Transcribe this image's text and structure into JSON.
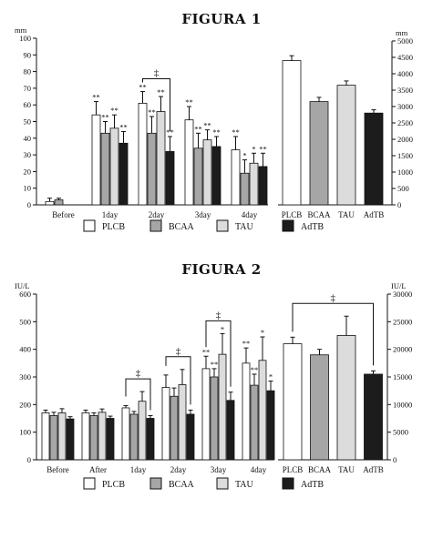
{
  "colors": {
    "PLCB": "#ffffff",
    "BCAA": "#a6a6a6",
    "TAU": "#dcdcdc",
    "AdTB": "#1c1c1c",
    "stroke": "#111111"
  },
  "chart_data": [
    {
      "title": "FIGURA 1",
      "type": "bar",
      "left_panel": {
        "ylabel": "mm",
        "ylim": [
          0,
          100
        ],
        "yticks": [
          0,
          10,
          20,
          30,
          40,
          50,
          60,
          70,
          80,
          90,
          100
        ],
        "categories": [
          "Before",
          "1day",
          "2day",
          "3day",
          "4day"
        ],
        "series": [
          {
            "name": "PLCB",
            "values": [
              2,
              54,
              61,
              51,
              33
            ],
            "errors": [
              2,
              8,
              7,
              8,
              8
            ]
          },
          {
            "name": "BCAA",
            "values": [
              3,
              43,
              43,
              34,
              19
            ],
            "errors": [
              1,
              7,
              10,
              9,
              8
            ]
          },
          {
            "name": "TAU",
            "values": [
              null,
              46,
              56,
              39,
              25
            ],
            "errors": [
              null,
              8,
              9,
              6,
              6
            ]
          },
          {
            "name": "AdTB",
            "values": [
              null,
              37,
              32,
              35,
              23
            ],
            "errors": [
              null,
              7,
              9,
              6,
              8
            ]
          }
        ],
        "significance": [
          [
            [
              "",
              ""
            ],
            [
              "**",
              "*"
            ],
            [
              "**",
              "**"
            ],
            [
              "**",
              "**"
            ],
            [
              "**",
              "*"
            ]
          ],
          [
            [
              "",
              ""
            ],
            [
              "**",
              "**"
            ],
            [
              "**",
              "**"
            ],
            [
              "**",
              "**"
            ],
            [
              "*",
              "*"
            ]
          ],
          [
            [
              "",
              ""
            ],
            [
              "**",
              "**"
            ],
            [
              "**",
              "**"
            ],
            [
              "**",
              "**"
            ],
            [
              "*",
              "*"
            ]
          ],
          [
            [
              "",
              ""
            ],
            [
              "**",
              "**"
            ],
            [
              "**",
              "**"
            ],
            [
              "**",
              "**"
            ],
            [
              "**",
              "**"
            ]
          ]
        ],
        "bar_labels": [
          [
            "",
            "**",
            "**",
            "**",
            "**"
          ],
          [
            "",
            "**",
            "**",
            "**",
            "*"
          ],
          [
            "",
            "**",
            "**",
            "**",
            "*"
          ],
          [
            "",
            "**",
            "**",
            "**",
            "**"
          ]
        ],
        "bracket": {
          "category": "2day",
          "from": "PLCB",
          "to": "AdTB",
          "symbol": "‡"
        }
      },
      "right_panel": {
        "ylabel": "mm",
        "ylim": [
          0,
          5000
        ],
        "yticks": [
          0,
          500,
          1000,
          1500,
          2000,
          2500,
          3000,
          3500,
          4000,
          4500,
          5000
        ],
        "categories": [
          "PLCB",
          "BCAA",
          "TAU",
          "AdTB"
        ],
        "values": [
          4400,
          3150,
          3650,
          2800
        ],
        "errors": [
          150,
          130,
          130,
          100
        ]
      },
      "legend": [
        "PLCB",
        "BCAA",
        "TAU",
        "AdTB"
      ]
    },
    {
      "title": "FIGURA 2",
      "type": "bar",
      "left_panel": {
        "ylabel": "IU/L",
        "ylim": [
          0,
          600
        ],
        "yticks": [
          0,
          100,
          200,
          300,
          400,
          500,
          600
        ],
        "categories": [
          "Before",
          "After",
          "1day",
          "2day",
          "3day",
          "4day"
        ],
        "series": [
          {
            "name": "PLCB",
            "values": [
              170,
              170,
              188,
              262,
              330,
              350
            ],
            "errors": [
              10,
              10,
              8,
              45,
              45,
              55
            ]
          },
          {
            "name": "BCAA",
            "values": [
              160,
              160,
              165,
              230,
              300,
              270
            ],
            "errors": [
              12,
              10,
              10,
              30,
              30,
              40
            ]
          },
          {
            "name": "TAU",
            "values": [
              170,
              172,
              212,
              272,
              382,
              360
            ],
            "errors": [
              15,
              12,
              35,
              55,
              75,
              85
            ]
          },
          {
            "name": "AdTB",
            "values": [
              148,
              150,
              150,
              165,
              215,
              250
            ],
            "errors": [
              8,
              8,
              10,
              15,
              30,
              35
            ]
          }
        ],
        "bar_labels": [
          [
            "",
            "",
            "",
            "",
            "**",
            "**"
          ],
          [
            "",
            "",
            "",
            "",
            "**",
            "**"
          ],
          [
            "",
            "",
            "",
            "",
            "*",
            "*"
          ],
          [
            "",
            "",
            "",
            "",
            "",
            "*"
          ]
        ],
        "brackets": [
          {
            "category": "1day",
            "from": "PLCB",
            "to": "AdTB",
            "symbol": "‡"
          },
          {
            "category": "2day",
            "from": "PLCB",
            "to": "AdTB",
            "symbol": "‡"
          },
          {
            "category": "3day",
            "from": "PLCB",
            "to": "AdTB",
            "symbol": "‡"
          }
        ]
      },
      "right_panel": {
        "ylabel": "IU/L",
        "ylim": [
          0,
          30000
        ],
        "yticks": [
          0,
          5000,
          10000,
          15000,
          20000,
          25000,
          30000
        ],
        "categories": [
          "PLCB",
          "BCAA",
          "TAU",
          "AdTB"
        ],
        "values": [
          21000,
          19000,
          22500,
          15500
        ],
        "errors": [
          1200,
          1000,
          3500,
          600
        ],
        "bracket": {
          "from": "PLCB",
          "to": "AdTB",
          "symbol": "‡"
        }
      },
      "legend": [
        "PLCB",
        "BCAA",
        "TAU",
        "AdTB"
      ]
    }
  ]
}
